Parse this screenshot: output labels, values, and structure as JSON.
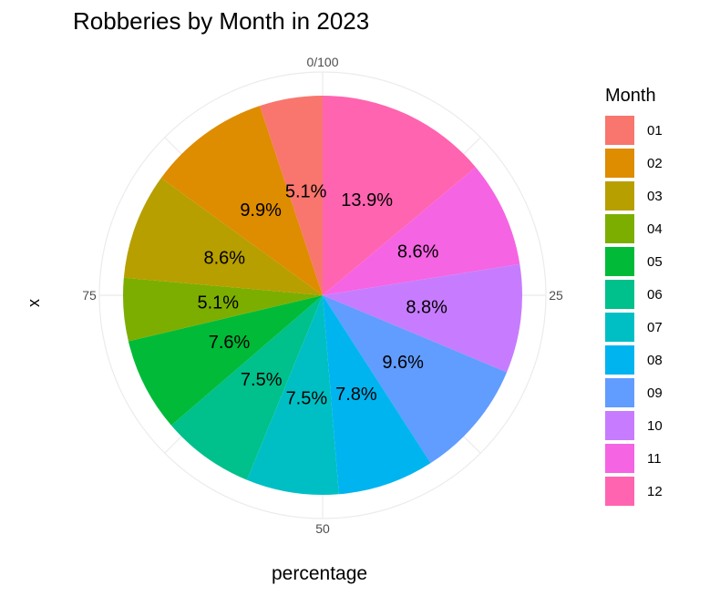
{
  "chart_data": {
    "type": "pie",
    "title": "Robberies by Month in 2023",
    "xlabel": "percentage",
    "ylabel": "x",
    "legend_title": "Month",
    "legend_position": "right",
    "angular_ticks": [
      "0/100",
      "25",
      "50",
      "75"
    ],
    "categories": [
      "01",
      "02",
      "03",
      "04",
      "05",
      "06",
      "07",
      "08",
      "09",
      "10",
      "11",
      "12"
    ],
    "values": [
      5.1,
      9.9,
      8.6,
      5.1,
      7.6,
      7.5,
      7.5,
      7.8,
      9.6,
      8.8,
      8.6,
      13.9
    ],
    "labels": [
      "5.1%",
      "9.9%",
      "8.6%",
      "5.1%",
      "7.6%",
      "7.5%",
      "7.5%",
      "7.8%",
      "9.6%",
      "8.8%",
      "8.6%",
      "13.9%"
    ],
    "colors": [
      "#F8766D",
      "#DE8C00",
      "#B79F00",
      "#7CAE00",
      "#00BA38",
      "#00C08B",
      "#00BFC4",
      "#00B4F0",
      "#619CFF",
      "#C77CFF",
      "#F564E3",
      "#FF64B0"
    ],
    "grid": true
  }
}
